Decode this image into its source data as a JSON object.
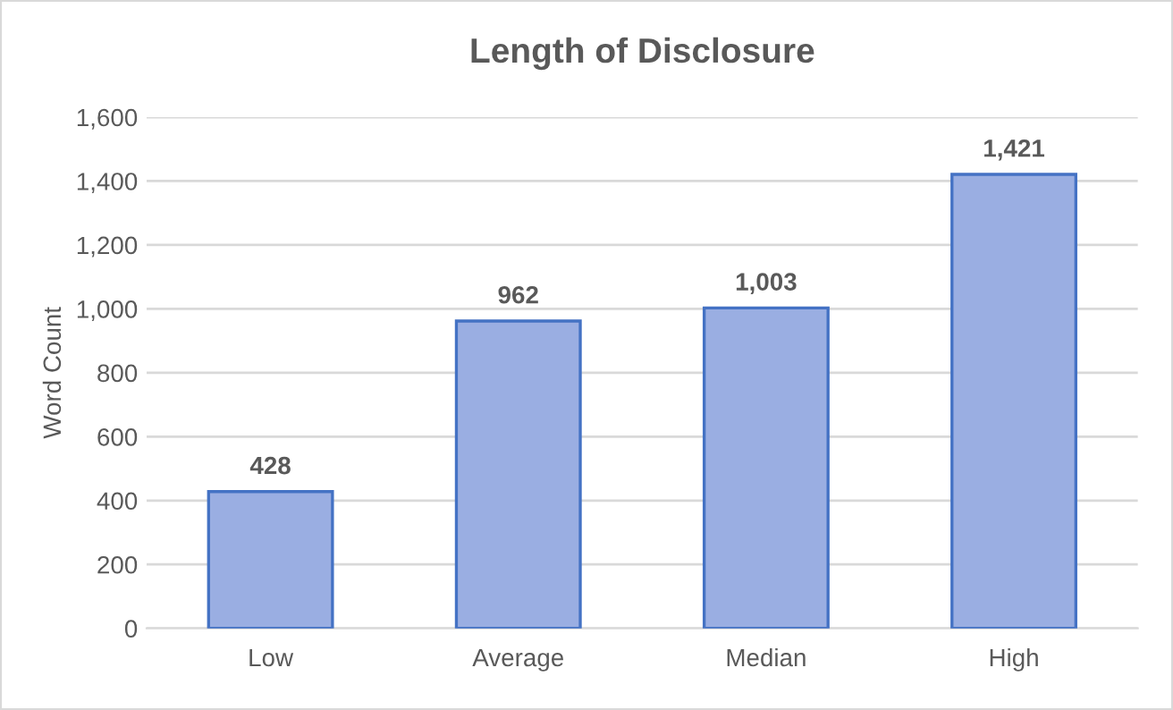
{
  "chart_data": {
    "type": "bar",
    "title": "Length of Disclosure",
    "ylabel": "Word Count",
    "categories": [
      "Low",
      "Average",
      "Median",
      "High"
    ],
    "values": [
      428,
      962,
      1003,
      1421
    ],
    "value_labels": [
      "428",
      "962",
      "1,003",
      "1,421"
    ],
    "color": "#9aaee2",
    "ylim": [
      0,
      1600
    ],
    "yticks": [
      0,
      200,
      400,
      600,
      800,
      {
        "value": 1000,
        "label": "1,000"
      },
      {
        "value": 1200,
        "label": "1,200"
      },
      {
        "value": 1400,
        "label": "1,400"
      },
      {
        "value": 1600,
        "label": "1,600"
      }
    ],
    "grid": "y",
    "legend": false
  }
}
